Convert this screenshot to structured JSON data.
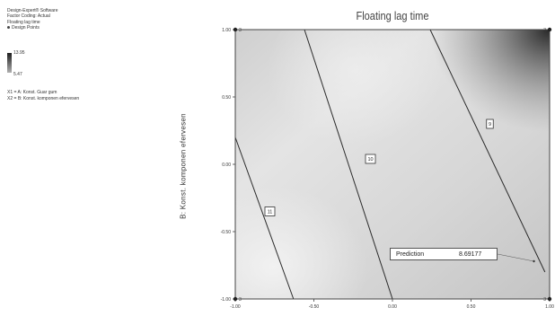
{
  "side_panel": {
    "software": "Design-Expert® Software",
    "factor_coding": "Factor Coding: Actual",
    "response": "Floating lag time",
    "design_points": "Design Points",
    "legend_max": "13.95",
    "legend_min": "5.47",
    "factor_x1": "X1 = A: Konst. Guar gum",
    "factor_x2": "X2 = B: Konst. komponen efervesen"
  },
  "prediction": {
    "label": "Prediction",
    "value": "8.69177"
  },
  "colors": {
    "dark_shade": "#1e1e1e",
    "light_shade": "#f0f0f0",
    "contour_line": "#2a2a2a",
    "axis": "#444444"
  },
  "chart_data": {
    "type": "contour",
    "title": "Floating lag time",
    "xlabel": "",
    "ylabel": "B: Konst. komponen efervesen",
    "xlim": [
      -1.0,
      1.0
    ],
    "ylim": [
      -1.0,
      1.0
    ],
    "x_ticks": [
      "-1.00",
      "-0.50",
      "0.00",
      "0.50",
      "1.00"
    ],
    "y_ticks": [
      "1.00",
      "0.50",
      "0.00",
      "-0.50",
      "-1.00"
    ],
    "contours": [
      {
        "label": "11",
        "label_at": [
          -0.78,
          -0.35
        ],
        "points": [
          [
            -1.0,
            0.2
          ],
          [
            -0.63,
            -1.0
          ]
        ]
      },
      {
        "label": "10",
        "label_at": [
          -0.14,
          0.04
        ],
        "points": [
          [
            -0.56,
            1.0
          ],
          [
            0.0,
            -1.0
          ]
        ]
      },
      {
        "label": "9",
        "label_at": [
          0.62,
          0.3
        ],
        "points": [
          [
            0.24,
            1.0
          ],
          [
            0.97,
            -0.8
          ]
        ]
      }
    ],
    "design_points": [
      {
        "x": -1.0,
        "y": 1.0,
        "label": "3"
      },
      {
        "x": 1.0,
        "y": 1.0,
        "label": "3"
      },
      {
        "x": -1.0,
        "y": -1.0,
        "label": "3"
      },
      {
        "x": 1.0,
        "y": -1.0,
        "label": "3"
      }
    ],
    "prediction_point": {
      "x": 0.9,
      "y": -0.72
    },
    "grid": false,
    "legend": "left"
  }
}
